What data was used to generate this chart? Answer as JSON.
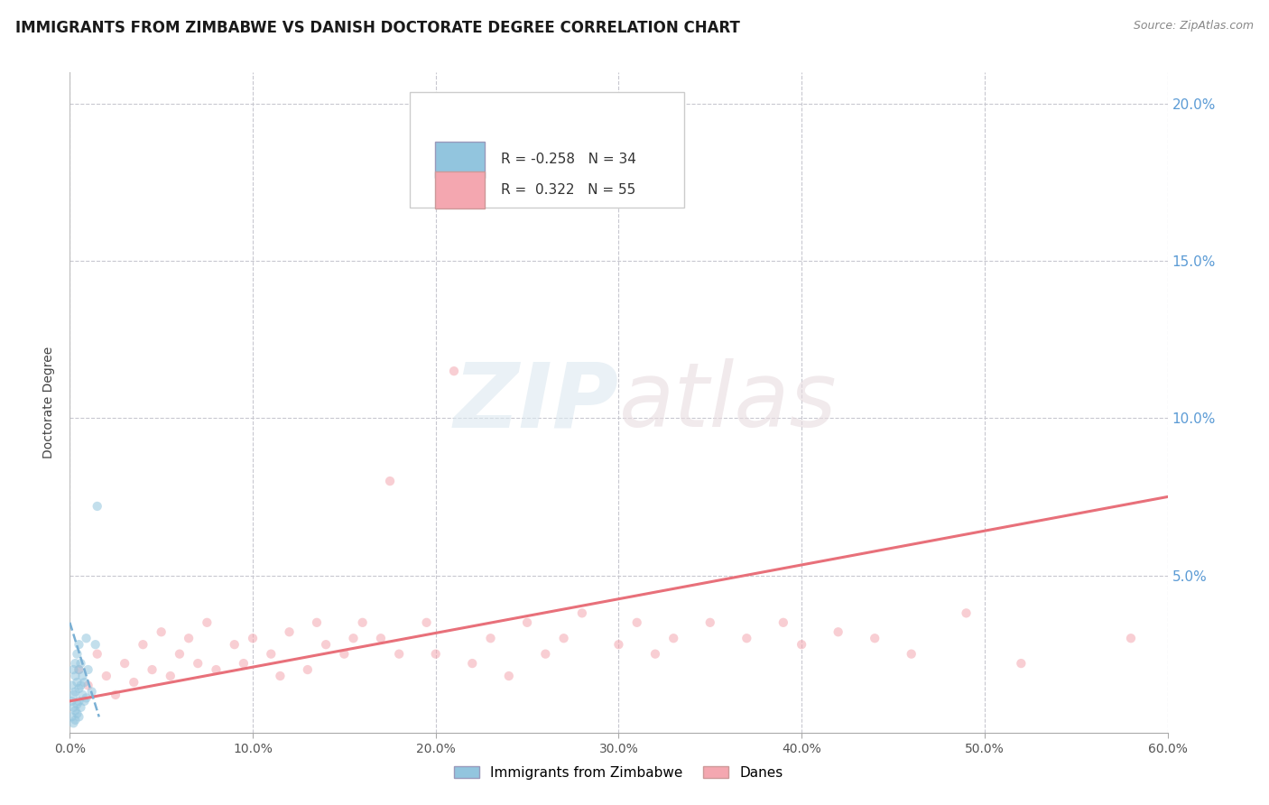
{
  "title": "IMMIGRANTS FROM ZIMBABWE VS DANISH DOCTORATE DEGREE CORRELATION CHART",
  "source": "Source: ZipAtlas.com",
  "ylabel": "Doctorate Degree",
  "watermark": "ZIPatlas",
  "xlim": [
    0.0,
    0.6
  ],
  "ylim": [
    0.0,
    0.21
  ],
  "xtick_labels": [
    "0.0%",
    "10.0%",
    "20.0%",
    "30.0%",
    "40.0%",
    "50.0%",
    "60.0%"
  ],
  "xtick_vals": [
    0.0,
    0.1,
    0.2,
    0.3,
    0.4,
    0.5,
    0.6
  ],
  "ytick_vals": [
    0.0,
    0.05,
    0.1,
    0.15,
    0.2
  ],
  "ytick_labels_right": [
    "",
    "5.0%",
    "10.0%",
    "15.0%",
    "20.0%"
  ],
  "grid_ytick_vals": [
    0.05,
    0.1,
    0.15,
    0.2
  ],
  "legend_blue_label": "Immigrants from Zimbabwe",
  "legend_pink_label": "Danes",
  "legend_r_blue": "R = -0.258",
  "legend_n_blue": "N = 34",
  "legend_r_pink": "R =  0.322",
  "legend_n_pink": "N = 55",
  "blue_color": "#92c5de",
  "pink_color": "#f4a7b0",
  "background_color": "#ffffff",
  "grid_color": "#c8c8d0",
  "blue_scatter_x": [
    0.001,
    0.001,
    0.001,
    0.002,
    0.002,
    0.002,
    0.002,
    0.003,
    0.003,
    0.003,
    0.003,
    0.003,
    0.004,
    0.004,
    0.004,
    0.004,
    0.005,
    0.005,
    0.005,
    0.005,
    0.005,
    0.006,
    0.006,
    0.006,
    0.007,
    0.007,
    0.008,
    0.008,
    0.009,
    0.009,
    0.01,
    0.012,
    0.014,
    0.015
  ],
  "blue_scatter_y": [
    0.005,
    0.01,
    0.015,
    0.003,
    0.008,
    0.012,
    0.02,
    0.004,
    0.007,
    0.013,
    0.018,
    0.022,
    0.006,
    0.009,
    0.016,
    0.025,
    0.005,
    0.01,
    0.014,
    0.02,
    0.028,
    0.008,
    0.015,
    0.022,
    0.012,
    0.018,
    0.01,
    0.016,
    0.011,
    0.03,
    0.02,
    0.013,
    0.028,
    0.072
  ],
  "pink_scatter_x": [
    0.005,
    0.01,
    0.015,
    0.02,
    0.025,
    0.03,
    0.035,
    0.04,
    0.045,
    0.05,
    0.055,
    0.06,
    0.065,
    0.07,
    0.075,
    0.08,
    0.09,
    0.095,
    0.1,
    0.11,
    0.115,
    0.12,
    0.13,
    0.135,
    0.14,
    0.15,
    0.155,
    0.16,
    0.17,
    0.175,
    0.18,
    0.195,
    0.2,
    0.21,
    0.22,
    0.23,
    0.24,
    0.25,
    0.26,
    0.27,
    0.28,
    0.3,
    0.31,
    0.32,
    0.33,
    0.35,
    0.37,
    0.39,
    0.4,
    0.42,
    0.44,
    0.46,
    0.49,
    0.52,
    0.58
  ],
  "pink_scatter_y": [
    0.02,
    0.015,
    0.025,
    0.018,
    0.012,
    0.022,
    0.016,
    0.028,
    0.02,
    0.032,
    0.018,
    0.025,
    0.03,
    0.022,
    0.035,
    0.02,
    0.028,
    0.022,
    0.03,
    0.025,
    0.018,
    0.032,
    0.02,
    0.035,
    0.028,
    0.025,
    0.03,
    0.035,
    0.03,
    0.08,
    0.025,
    0.035,
    0.025,
    0.115,
    0.022,
    0.03,
    0.018,
    0.035,
    0.025,
    0.03,
    0.038,
    0.028,
    0.035,
    0.025,
    0.03,
    0.035,
    0.03,
    0.035,
    0.028,
    0.032,
    0.03,
    0.025,
    0.038,
    0.022,
    0.03
  ],
  "blue_trend_x": [
    0.0,
    0.016
  ],
  "blue_trend_y": [
    0.035,
    0.005
  ],
  "pink_trend_x": [
    0.0,
    0.6
  ],
  "pink_trend_y": [
    0.01,
    0.075
  ],
  "title_fontsize": 12,
  "axis_fontsize": 10,
  "tick_fontsize": 10,
  "legend_fontsize": 11,
  "scatter_size": 55,
  "scatter_alpha": 0.55
}
